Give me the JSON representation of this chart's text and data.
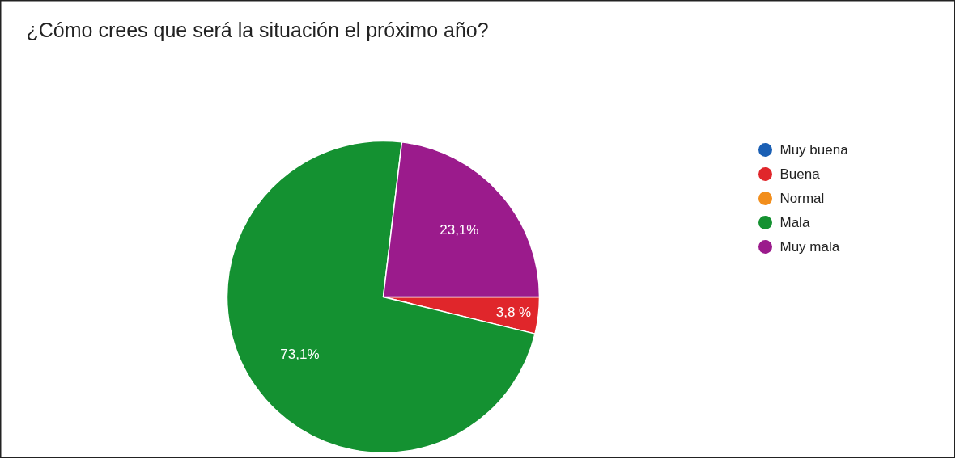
{
  "chart_data": {
    "type": "pie",
    "title": "¿Cómo crees que será la situación el próximo año?",
    "categories": [
      "Muy buena",
      "Buena",
      "Normal",
      "Mala",
      "Muy mala"
    ],
    "values": [
      0,
      3.8,
      0,
      73.1,
      23.1
    ],
    "colors": [
      "#1a5fb4",
      "#e0262b",
      "#f28e1c",
      "#149131",
      "#9b1b8c"
    ],
    "value_labels": [
      null,
      "3,8 %",
      null,
      "73,1%",
      "23,1%"
    ],
    "legend": "right"
  }
}
